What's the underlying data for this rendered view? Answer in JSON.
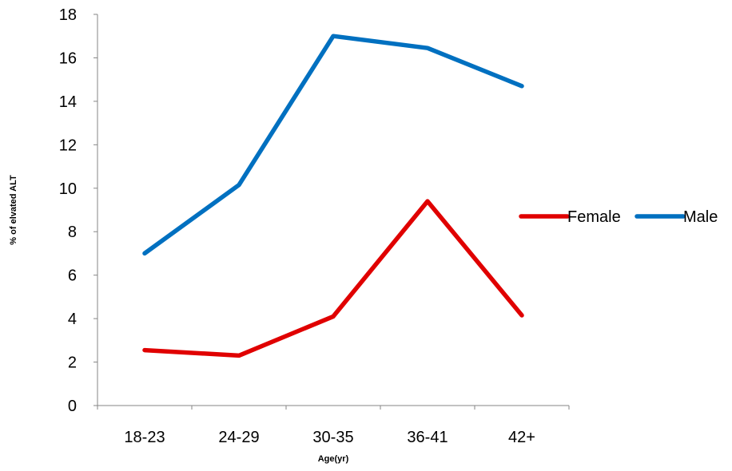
{
  "chart_data": {
    "type": "line",
    "title": "",
    "xlabel": "Age(yr)",
    "ylabel": "% of elvated ALT",
    "categories": [
      "18-23",
      "24-29",
      "30-35",
      "36-41",
      "42+"
    ],
    "ylim": [
      0,
      18
    ],
    "yticks": [
      0,
      2,
      4,
      6,
      8,
      10,
      12,
      14,
      16,
      18
    ],
    "grid": false,
    "legend_position": "right",
    "series": [
      {
        "name": "Female",
        "color": "#E00000",
        "values": [
          2.55,
          2.3,
          4.1,
          9.4,
          4.15
        ]
      },
      {
        "name": "Male",
        "color": "#0070C0",
        "values": [
          7.0,
          10.15,
          17.0,
          16.45,
          14.7
        ]
      }
    ]
  }
}
